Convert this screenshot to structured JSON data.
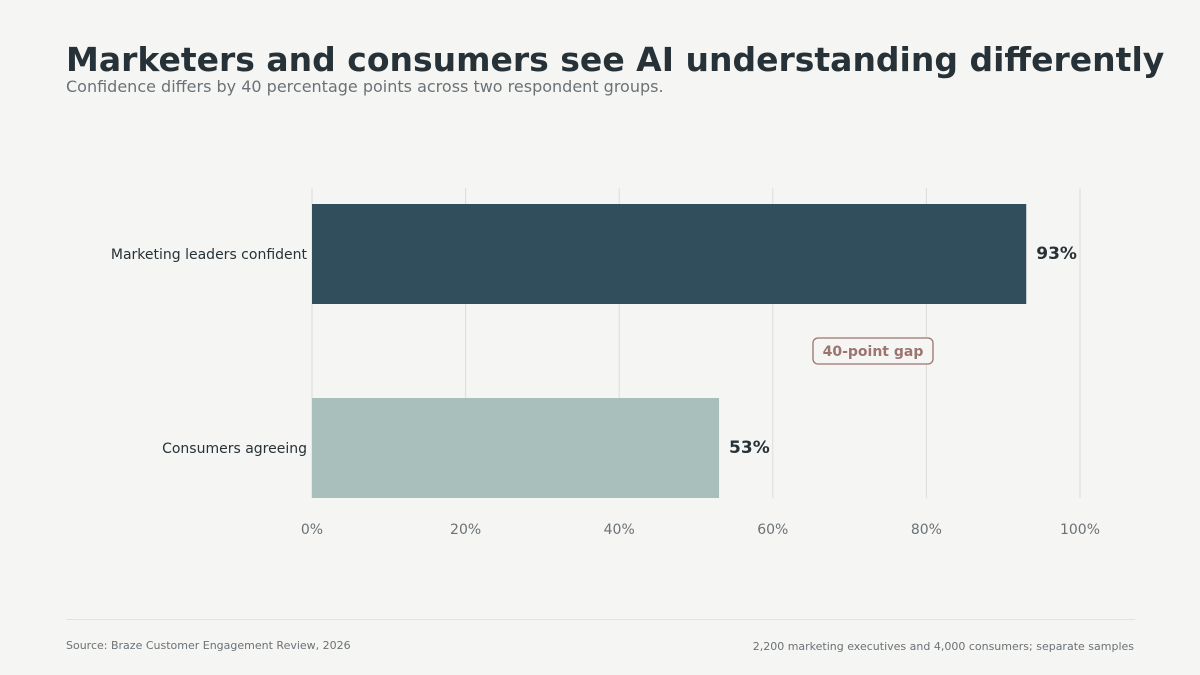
{
  "header": {
    "title": "Marketers and consumers see AI understanding differently",
    "subtitle": "Confidence differs by 40 percentage points across two respondent groups."
  },
  "chart_data": {
    "type": "bar",
    "orientation": "horizontal",
    "title": "Marketers and consumers see AI understanding differently",
    "subtitle": "Confidence differs by 40 percentage points across two respondent groups.",
    "categories": [
      "Marketing leaders confident",
      "Consumers agreeing"
    ],
    "values": [
      93,
      53
    ],
    "value_labels": [
      "93%",
      "53%"
    ],
    "bar_colors": [
      "#304e5b",
      "#a8bfbb"
    ],
    "xlim": [
      0,
      100
    ],
    "xticks": [
      0,
      20,
      40,
      60,
      80,
      100
    ],
    "xtick_labels": [
      "0%",
      "20%",
      "40%",
      "60%",
      "80%",
      "100%"
    ],
    "xlabel": "",
    "ylabel": "",
    "grid": "vertical",
    "legend": "none",
    "annotation": {
      "text": "40-point gap",
      "color": "#9c7470"
    }
  },
  "footer": {
    "source": "Source: Braze Customer Engagement Review, 2026",
    "note": "2,200 marketing executives and 4,000 consumers; separate samples"
  },
  "colors": {
    "background": "#f5f5f3",
    "text": "#263238",
    "muted_text": "#6b7276",
    "grid": "#dcdcda"
  }
}
